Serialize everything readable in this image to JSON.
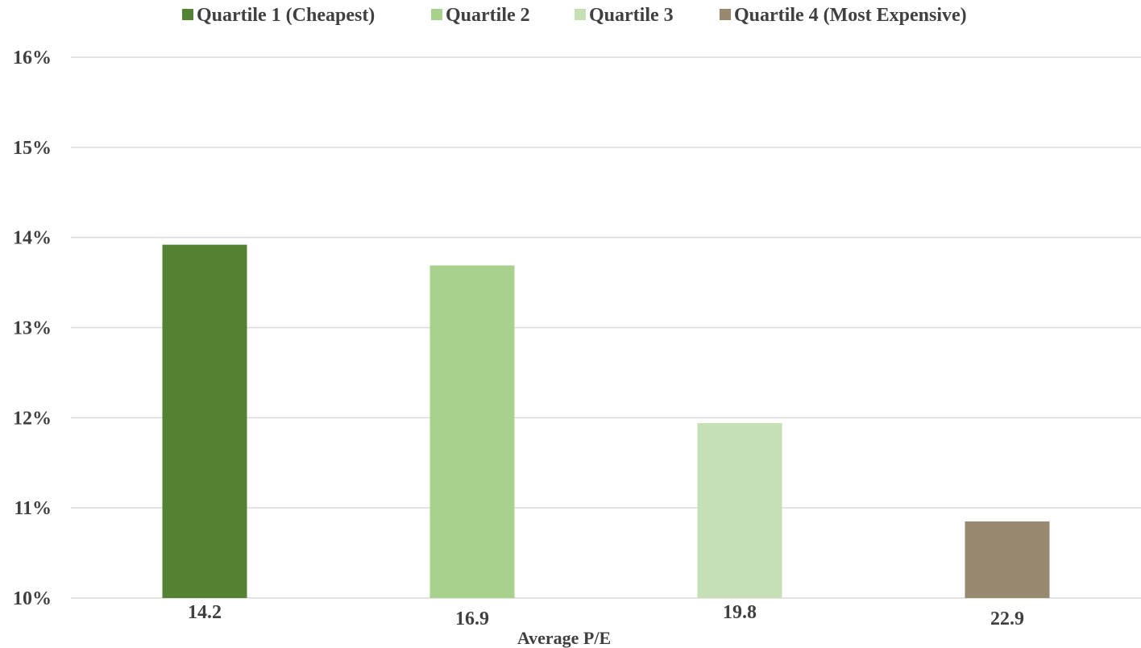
{
  "chart_data": {
    "type": "bar",
    "title": "",
    "xlabel": "Average P/E",
    "ylabel": "",
    "ylim": [
      10,
      16
    ],
    "yticks": [
      "10%",
      "11%",
      "12%",
      "13%",
      "14%",
      "15%",
      "16%"
    ],
    "grid": true,
    "legend_position": "top",
    "series": [
      {
        "name": "Quartile 1 (Cheapest)",
        "category": "14.2",
        "value": 13.92,
        "color": "#548235"
      },
      {
        "name": "Quartile 2",
        "category": "16.9",
        "value": 13.69,
        "color": "#a9d18e"
      },
      {
        "name": "Quartile 3",
        "category": "19.8",
        "value": 11.94,
        "color": "#c5e0b4"
      },
      {
        "name": "Quartile 4 (Most Expensive)",
        "category": "22.9",
        "value": 10.85,
        "color": "#988870"
      }
    ]
  }
}
